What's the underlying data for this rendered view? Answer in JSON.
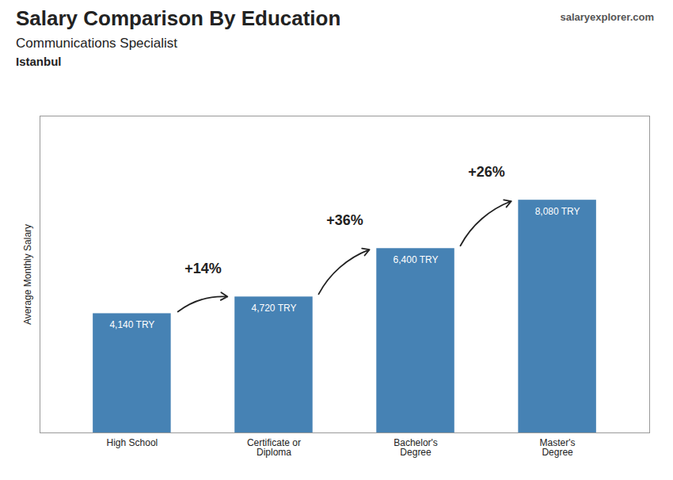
{
  "chart_data": {
    "type": "bar",
    "title": "Salary Comparison By Education",
    "subtitle": "Communications Specialist",
    "city": "Istanbul",
    "source": "salaryexplorer.com",
    "ylabel": "Average Monthly Salary",
    "categories": [
      "High School",
      "Certificate or\nDiploma",
      "Bachelor's\nDegree",
      "Master's\nDegree"
    ],
    "values": [
      4140,
      4720,
      6400,
      8080
    ],
    "value_labels": [
      "4,140 TRY",
      "4,720 TRY",
      "6,400 TRY",
      "8,080 TRY"
    ],
    "data_labels": true,
    "annotations": [
      "+14%",
      "+36%",
      "+26%"
    ],
    "ylim": [
      0,
      11000
    ],
    "grid": false,
    "tick_labels": "x"
  }
}
